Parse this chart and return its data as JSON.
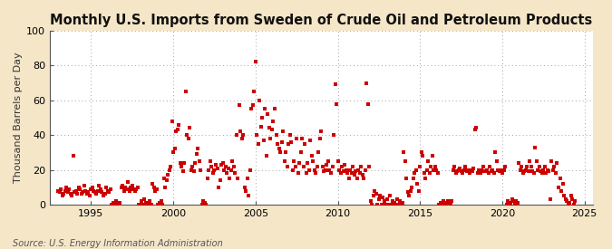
{
  "title": "Monthly U.S. Imports from Sweden of Crude Oil and Petroleum Products",
  "ylabel": "Thousand Barrels per Day",
  "source": "Source: U.S. Energy Information Administration",
  "xlim": [
    1992.5,
    2025.5
  ],
  "ylim": [
    0,
    100
  ],
  "yticks": [
    0,
    20,
    40,
    60,
    80,
    100
  ],
  "xticks": [
    1995,
    2000,
    2005,
    2010,
    2015,
    2020,
    2025
  ],
  "background_color": "#f5e6c8",
  "plot_bg_color": "#ffffff",
  "dot_color": "#cc0000",
  "dot_size": 10,
  "grid_color": "#999999",
  "grid_style": ":",
  "title_fontsize": 10.5,
  "label_fontsize": 8,
  "tick_fontsize": 8,
  "source_fontsize": 7,
  "data": [
    [
      1993.0,
      8
    ],
    [
      1993.083,
      7
    ],
    [
      1993.167,
      9
    ],
    [
      1993.25,
      5
    ],
    [
      1993.333,
      6
    ],
    [
      1993.417,
      8
    ],
    [
      1993.5,
      10
    ],
    [
      1993.583,
      7
    ],
    [
      1993.667,
      9
    ],
    [
      1993.75,
      6
    ],
    [
      1993.833,
      5
    ],
    [
      1993.917,
      28
    ],
    [
      1994.0,
      7
    ],
    [
      1994.083,
      8
    ],
    [
      1994.167,
      6
    ],
    [
      1994.25,
      10
    ],
    [
      1994.333,
      9
    ],
    [
      1994.417,
      6
    ],
    [
      1994.5,
      7
    ],
    [
      1994.583,
      11
    ],
    [
      1994.667,
      8
    ],
    [
      1994.75,
      6
    ],
    [
      1994.833,
      7
    ],
    [
      1994.917,
      5
    ],
    [
      1995.0,
      9
    ],
    [
      1995.083,
      10
    ],
    [
      1995.167,
      8
    ],
    [
      1995.25,
      7
    ],
    [
      1995.333,
      6
    ],
    [
      1995.417,
      8
    ],
    [
      1995.5,
      11
    ],
    [
      1995.583,
      9
    ],
    [
      1995.667,
      7
    ],
    [
      1995.75,
      5
    ],
    [
      1995.833,
      6
    ],
    [
      1995.917,
      10
    ],
    [
      1996.0,
      8
    ],
    [
      1996.083,
      7
    ],
    [
      1996.167,
      9
    ],
    [
      1996.25,
      0
    ],
    [
      1996.333,
      1
    ],
    [
      1996.417,
      0
    ],
    [
      1996.5,
      2
    ],
    [
      1996.583,
      0
    ],
    [
      1996.667,
      1
    ],
    [
      1996.75,
      1
    ],
    [
      1996.833,
      10
    ],
    [
      1996.917,
      11
    ],
    [
      1997.0,
      8
    ],
    [
      1997.083,
      10
    ],
    [
      1997.167,
      9
    ],
    [
      1997.25,
      13
    ],
    [
      1997.333,
      8
    ],
    [
      1997.417,
      10
    ],
    [
      1997.5,
      11
    ],
    [
      1997.583,
      9
    ],
    [
      1997.667,
      8
    ],
    [
      1997.75,
      9
    ],
    [
      1997.833,
      10
    ],
    [
      1997.917,
      0
    ],
    [
      1998.0,
      0
    ],
    [
      1998.083,
      2
    ],
    [
      1998.167,
      0
    ],
    [
      1998.25,
      3
    ],
    [
      1998.333,
      1
    ],
    [
      1998.417,
      0
    ],
    [
      1998.5,
      0
    ],
    [
      1998.583,
      2
    ],
    [
      1998.667,
      0
    ],
    [
      1998.75,
      12
    ],
    [
      1998.833,
      10
    ],
    [
      1998.917,
      8
    ],
    [
      1999.0,
      9
    ],
    [
      1999.083,
      0
    ],
    [
      1999.167,
      1
    ],
    [
      1999.25,
      2
    ],
    [
      1999.333,
      0
    ],
    [
      1999.417,
      15
    ],
    [
      1999.5,
      10
    ],
    [
      1999.583,
      14
    ],
    [
      1999.667,
      17
    ],
    [
      1999.75,
      20
    ],
    [
      1999.833,
      22
    ],
    [
      1999.917,
      48
    ],
    [
      2000.0,
      30
    ],
    [
      2000.083,
      32
    ],
    [
      2000.167,
      42
    ],
    [
      2000.25,
      43
    ],
    [
      2000.333,
      46
    ],
    [
      2000.417,
      24
    ],
    [
      2000.5,
      22
    ],
    [
      2000.583,
      19
    ],
    [
      2000.667,
      24
    ],
    [
      2000.75,
      65
    ],
    [
      2000.833,
      40
    ],
    [
      2000.917,
      38
    ],
    [
      2001.0,
      44
    ],
    [
      2001.083,
      20
    ],
    [
      2001.167,
      22
    ],
    [
      2001.25,
      19
    ],
    [
      2001.333,
      24
    ],
    [
      2001.417,
      29
    ],
    [
      2001.5,
      32
    ],
    [
      2001.583,
      25
    ],
    [
      2001.667,
      20
    ],
    [
      2001.75,
      0
    ],
    [
      2001.833,
      2
    ],
    [
      2001.917,
      1
    ],
    [
      2002.0,
      0
    ],
    [
      2002.083,
      15
    ],
    [
      2002.167,
      20
    ],
    [
      2002.25,
      25
    ],
    [
      2002.333,
      22
    ],
    [
      2002.417,
      18
    ],
    [
      2002.5,
      20
    ],
    [
      2002.583,
      23
    ],
    [
      2002.667,
      21
    ],
    [
      2002.75,
      10
    ],
    [
      2002.833,
      14
    ],
    [
      2002.917,
      23
    ],
    [
      2003.0,
      24
    ],
    [
      2003.083,
      20
    ],
    [
      2003.167,
      22
    ],
    [
      2003.25,
      18
    ],
    [
      2003.333,
      21
    ],
    [
      2003.417,
      15
    ],
    [
      2003.5,
      20
    ],
    [
      2003.583,
      25
    ],
    [
      2003.667,
      22
    ],
    [
      2003.75,
      18
    ],
    [
      2003.833,
      40
    ],
    [
      2003.917,
      15
    ],
    [
      2004.0,
      57
    ],
    [
      2004.083,
      42
    ],
    [
      2004.167,
      38
    ],
    [
      2004.25,
      40
    ],
    [
      2004.333,
      10
    ],
    [
      2004.417,
      8
    ],
    [
      2004.5,
      15
    ],
    [
      2004.583,
      5
    ],
    [
      2004.667,
      20
    ],
    [
      2004.75,
      55
    ],
    [
      2004.833,
      57
    ],
    [
      2004.917,
      65
    ],
    [
      2005.0,
      82
    ],
    [
      2005.083,
      40
    ],
    [
      2005.167,
      35
    ],
    [
      2005.25,
      60
    ],
    [
      2005.333,
      45
    ],
    [
      2005.417,
      50
    ],
    [
      2005.5,
      37
    ],
    [
      2005.583,
      55
    ],
    [
      2005.667,
      28
    ],
    [
      2005.75,
      52
    ],
    [
      2005.833,
      44
    ],
    [
      2005.917,
      38
    ],
    [
      2006.0,
      43
    ],
    [
      2006.083,
      48
    ],
    [
      2006.167,
      55
    ],
    [
      2006.25,
      40
    ],
    [
      2006.333,
      35
    ],
    [
      2006.417,
      32
    ],
    [
      2006.5,
      30
    ],
    [
      2006.583,
      36
    ],
    [
      2006.667,
      42
    ],
    [
      2006.75,
      25
    ],
    [
      2006.833,
      30
    ],
    [
      2006.917,
      22
    ],
    [
      2007.0,
      35
    ],
    [
      2007.083,
      40
    ],
    [
      2007.167,
      36
    ],
    [
      2007.25,
      20
    ],
    [
      2007.333,
      25
    ],
    [
      2007.417,
      22
    ],
    [
      2007.5,
      38
    ],
    [
      2007.583,
      18
    ],
    [
      2007.667,
      24
    ],
    [
      2007.75,
      30
    ],
    [
      2007.833,
      38
    ],
    [
      2007.917,
      22
    ],
    [
      2008.0,
      35
    ],
    [
      2008.083,
      18
    ],
    [
      2008.167,
      24
    ],
    [
      2008.25,
      20
    ],
    [
      2008.333,
      37
    ],
    [
      2008.417,
      28
    ],
    [
      2008.5,
      25
    ],
    [
      2008.583,
      20
    ],
    [
      2008.667,
      18
    ],
    [
      2008.75,
      22
    ],
    [
      2008.833,
      30
    ],
    [
      2008.917,
      38
    ],
    [
      2009.0,
      42
    ],
    [
      2009.083,
      22
    ],
    [
      2009.167,
      19
    ],
    [
      2009.25,
      20
    ],
    [
      2009.333,
      23
    ],
    [
      2009.417,
      25
    ],
    [
      2009.5,
      20
    ],
    [
      2009.583,
      18
    ],
    [
      2009.667,
      22
    ],
    [
      2009.75,
      40
    ],
    [
      2009.833,
      69
    ],
    [
      2009.917,
      58
    ],
    [
      2010.0,
      25
    ],
    [
      2010.083,
      20
    ],
    [
      2010.167,
      18
    ],
    [
      2010.25,
      22
    ],
    [
      2010.333,
      19
    ],
    [
      2010.417,
      23
    ],
    [
      2010.5,
      20
    ],
    [
      2010.583,
      18
    ],
    [
      2010.667,
      15
    ],
    [
      2010.75,
      20
    ],
    [
      2010.833,
      18
    ],
    [
      2010.917,
      22
    ],
    [
      2011.0,
      17
    ],
    [
      2011.083,
      19
    ],
    [
      2011.167,
      15
    ],
    [
      2011.25,
      20
    ],
    [
      2011.333,
      18
    ],
    [
      2011.417,
      22
    ],
    [
      2011.5,
      17
    ],
    [
      2011.583,
      15
    ],
    [
      2011.667,
      20
    ],
    [
      2011.75,
      70
    ],
    [
      2011.833,
      58
    ],
    [
      2011.917,
      22
    ],
    [
      2012.0,
      2
    ],
    [
      2012.083,
      0
    ],
    [
      2012.167,
      5
    ],
    [
      2012.25,
      8
    ],
    [
      2012.333,
      6
    ],
    [
      2012.417,
      0
    ],
    [
      2012.5,
      3
    ],
    [
      2012.583,
      5
    ],
    [
      2012.667,
      0
    ],
    [
      2012.75,
      4
    ],
    [
      2012.833,
      2
    ],
    [
      2012.917,
      0
    ],
    [
      2013.0,
      3
    ],
    [
      2013.083,
      0
    ],
    [
      2013.167,
      5
    ],
    [
      2013.25,
      0
    ],
    [
      2013.333,
      2
    ],
    [
      2013.417,
      1
    ],
    [
      2013.5,
      0
    ],
    [
      2013.583,
      3
    ],
    [
      2013.667,
      0
    ],
    [
      2013.75,
      2
    ],
    [
      2013.833,
      0
    ],
    [
      2013.917,
      1
    ],
    [
      2014.0,
      30
    ],
    [
      2014.083,
      25
    ],
    [
      2014.167,
      15
    ],
    [
      2014.25,
      7
    ],
    [
      2014.333,
      5
    ],
    [
      2014.417,
      8
    ],
    [
      2014.5,
      10
    ],
    [
      2014.583,
      15
    ],
    [
      2014.667,
      18
    ],
    [
      2014.75,
      20
    ],
    [
      2014.833,
      12
    ],
    [
      2014.917,
      8
    ],
    [
      2015.0,
      22
    ],
    [
      2015.083,
      30
    ],
    [
      2015.167,
      28
    ],
    [
      2015.25,
      18
    ],
    [
      2015.333,
      15
    ],
    [
      2015.417,
      20
    ],
    [
      2015.5,
      25
    ],
    [
      2015.583,
      18
    ],
    [
      2015.667,
      22
    ],
    [
      2015.75,
      28
    ],
    [
      2015.833,
      20
    ],
    [
      2015.917,
      22
    ],
    [
      2016.0,
      20
    ],
    [
      2016.083,
      18
    ],
    [
      2016.167,
      0
    ],
    [
      2016.25,
      1
    ],
    [
      2016.333,
      0
    ],
    [
      2016.417,
      2
    ],
    [
      2016.5,
      1
    ],
    [
      2016.583,
      0
    ],
    [
      2016.667,
      2
    ],
    [
      2016.75,
      1
    ],
    [
      2016.833,
      0
    ],
    [
      2016.917,
      2
    ],
    [
      2017.0,
      20
    ],
    [
      2017.083,
      22
    ],
    [
      2017.167,
      18
    ],
    [
      2017.25,
      19
    ],
    [
      2017.333,
      20
    ],
    [
      2017.417,
      21
    ],
    [
      2017.5,
      19
    ],
    [
      2017.583,
      18
    ],
    [
      2017.667,
      20
    ],
    [
      2017.75,
      22
    ],
    [
      2017.833,
      19
    ],
    [
      2017.917,
      20
    ],
    [
      2018.0,
      18
    ],
    [
      2018.083,
      20
    ],
    [
      2018.167,
      19
    ],
    [
      2018.25,
      21
    ],
    [
      2018.333,
      43
    ],
    [
      2018.417,
      44
    ],
    [
      2018.5,
      18
    ],
    [
      2018.583,
      20
    ],
    [
      2018.667,
      18
    ],
    [
      2018.75,
      20
    ],
    [
      2018.833,
      22
    ],
    [
      2018.917,
      19
    ],
    [
      2019.0,
      19
    ],
    [
      2019.083,
      20
    ],
    [
      2019.167,
      18
    ],
    [
      2019.25,
      22
    ],
    [
      2019.333,
      19
    ],
    [
      2019.417,
      20
    ],
    [
      2019.5,
      18
    ],
    [
      2019.583,
      30
    ],
    [
      2019.667,
      25
    ],
    [
      2019.75,
      20
    ],
    [
      2019.833,
      19
    ],
    [
      2019.917,
      20
    ],
    [
      2020.0,
      18
    ],
    [
      2020.083,
      20
    ],
    [
      2020.167,
      22
    ],
    [
      2020.25,
      0
    ],
    [
      2020.333,
      2
    ],
    [
      2020.417,
      1
    ],
    [
      2020.5,
      0
    ],
    [
      2020.583,
      3
    ],
    [
      2020.667,
      2
    ],
    [
      2020.75,
      0
    ],
    [
      2020.833,
      2
    ],
    [
      2020.917,
      1
    ],
    [
      2021.0,
      24
    ],
    [
      2021.083,
      20
    ],
    [
      2021.167,
      22
    ],
    [
      2021.25,
      18
    ],
    [
      2021.333,
      19
    ],
    [
      2021.417,
      20
    ],
    [
      2021.5,
      22
    ],
    [
      2021.583,
      19
    ],
    [
      2021.667,
      25
    ],
    [
      2021.75,
      22
    ],
    [
      2021.833,
      19
    ],
    [
      2021.917,
      18
    ],
    [
      2022.0,
      33
    ],
    [
      2022.083,
      25
    ],
    [
      2022.167,
      20
    ],
    [
      2022.25,
      22
    ],
    [
      2022.333,
      19
    ],
    [
      2022.417,
      18
    ],
    [
      2022.5,
      20
    ],
    [
      2022.583,
      22
    ],
    [
      2022.667,
      18
    ],
    [
      2022.75,
      20
    ],
    [
      2022.833,
      19
    ],
    [
      2022.917,
      3
    ],
    [
      2023.0,
      25
    ],
    [
      2023.083,
      20
    ],
    [
      2023.167,
      22
    ],
    [
      2023.25,
      18
    ],
    [
      2023.333,
      24
    ],
    [
      2023.417,
      10
    ],
    [
      2023.5,
      15
    ],
    [
      2023.583,
      8
    ],
    [
      2023.667,
      12
    ],
    [
      2023.75,
      5
    ],
    [
      2023.833,
      3
    ],
    [
      2023.917,
      2
    ],
    [
      2024.0,
      0
    ],
    [
      2024.083,
      1
    ],
    [
      2024.167,
      5
    ],
    [
      2024.25,
      3
    ],
    [
      2024.333,
      0
    ],
    [
      2024.417,
      2
    ]
  ]
}
